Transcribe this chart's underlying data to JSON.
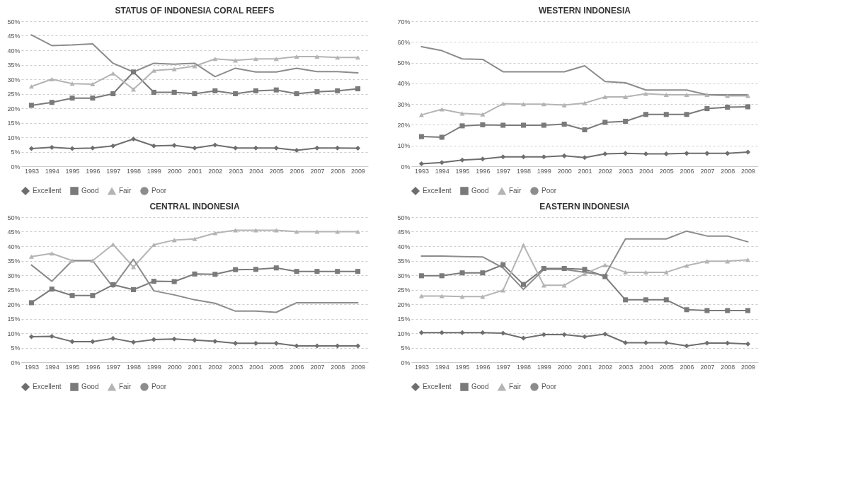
{
  "chart_data": [
    {
      "type": "line",
      "title": "STATUS OF INDONESIA CORAL REEFS",
      "categories": [
        "1993",
        "1994",
        "1995",
        "1996",
        "1997",
        "1998",
        "1999",
        "2000",
        "2001",
        "2002",
        "2003",
        "2004",
        "2005",
        "2006",
        "2007",
        "2008",
        "2009"
      ],
      "ylim": [
        0,
        50
      ],
      "yticks": [
        {
          "value": 0,
          "label": "0%"
        },
        {
          "value": 5,
          "label": "5%"
        },
        {
          "value": 10,
          "label": "10%"
        },
        {
          "value": 15,
          "label": "15%"
        },
        {
          "value": 20,
          "label": "20%"
        },
        {
          "value": 25,
          "label": "25%"
        },
        {
          "value": 30,
          "label": "30%"
        },
        {
          "value": 35,
          "label": "35%"
        },
        {
          "value": 40,
          "label": "40%"
        },
        {
          "value": 45,
          "label": "45%"
        },
        {
          "value": 50,
          "label": "50%"
        }
      ],
      "grid": "y",
      "legend": "bottom",
      "series": [
        {
          "name": "Excellent",
          "color": "#6e6e6e",
          "marker": "diamond",
          "values": [
            6.1,
            6.5,
            6.1,
            6.3,
            7,
            9.4,
            7,
            7.2,
            6.3,
            7.3,
            6.3,
            6.3,
            6.3,
            5.5,
            6.3,
            6.3,
            6.2
          ]
        },
        {
          "name": "Good",
          "color": "#7a7a7a",
          "marker": "square",
          "values": [
            21,
            22,
            23.5,
            23.5,
            25,
            32.5,
            25.5,
            25.5,
            25,
            26,
            25,
            26,
            26.3,
            25,
            25.7,
            26,
            26.7
          ]
        },
        {
          "name": "Fair",
          "color": "#b4b4b4",
          "marker": "triangle",
          "values": [
            27.5,
            30,
            28.5,
            28.3,
            32,
            26.5,
            33,
            33.5,
            34.5,
            37,
            36.5,
            37,
            37,
            37.8,
            37.8,
            37.5,
            37.5
          ]
        },
        {
          "name": "Poor",
          "color": "#8c8c8c",
          "marker": "none",
          "values": [
            45.3,
            41.6,
            41.8,
            42.2,
            35.5,
            32.5,
            35.5,
            35.2,
            35.5,
            30.9,
            33.8,
            32.5,
            32.5,
            33.8,
            32.6,
            32.6,
            32.2
          ]
        }
      ]
    },
    {
      "type": "line",
      "title": "WESTERN INDONESIA",
      "categories": [
        "1993",
        "1994",
        "1995",
        "1996",
        "1997",
        "1998",
        "1999",
        "2000",
        "2001",
        "2002",
        "2003",
        "2004",
        "2005",
        "2006",
        "2007",
        "2008",
        "2009"
      ],
      "ylim": [
        0,
        70
      ],
      "yticks": [
        {
          "value": 0,
          "label": "0%"
        },
        {
          "value": 10,
          "label": "10%"
        },
        {
          "value": 20,
          "label": "20%"
        },
        {
          "value": 30,
          "label": "30%"
        },
        {
          "value": 40,
          "label": "40%"
        },
        {
          "value": 50,
          "label": "50%"
        },
        {
          "value": 60,
          "label": "60%"
        },
        {
          "value": 70,
          "label": "70%"
        }
      ],
      "grid": "y",
      "legend": "bottom",
      "series": [
        {
          "name": "Excellent",
          "color": "#6e6e6e",
          "marker": "diamond",
          "values": [
            1.2,
            1.8,
            3,
            3.5,
            4.5,
            4.5,
            4.5,
            5,
            4.2,
            6,
            6.2,
            6,
            6,
            6.2,
            6.2,
            6.2,
            6.8
          ]
        },
        {
          "name": "Good",
          "color": "#7a7a7a",
          "marker": "square",
          "values": [
            14.3,
            14,
            19.5,
            20,
            19.8,
            19.8,
            19.8,
            20.3,
            17.6,
            21.2,
            21.7,
            25,
            25,
            25,
            27.8,
            28.5,
            28.7
          ]
        },
        {
          "name": "Fair",
          "color": "#b4b4b4",
          "marker": "triangle",
          "values": [
            24.8,
            27.5,
            25.5,
            25,
            30.2,
            30,
            30,
            29.5,
            30.5,
            33.5,
            33.5,
            35,
            34.5,
            34.5,
            34.5,
            34,
            34
          ]
        },
        {
          "name": "Poor",
          "color": "#8c8c8c",
          "marker": "none",
          "values": [
            57.7,
            55.8,
            51.8,
            51.6,
            45.6,
            45.6,
            45.6,
            45.6,
            48.5,
            40.9,
            40.3,
            36.8,
            36.8,
            36.8,
            34.5,
            34.5,
            34.5
          ]
        }
      ]
    },
    {
      "type": "line",
      "title": "CENTRAL INDONESIA",
      "categories": [
        "1993",
        "1994",
        "1995",
        "1996",
        "1997",
        "1998",
        "1999",
        "2000",
        "2001",
        "2002",
        "2003",
        "2004",
        "2005",
        "2006",
        "2007",
        "2008",
        "2009"
      ],
      "ylim": [
        0,
        50
      ],
      "yticks": [
        {
          "value": 0,
          "label": "0%"
        },
        {
          "value": 5,
          "label": "5%"
        },
        {
          "value": 10,
          "label": "10%"
        },
        {
          "value": 15,
          "label": "15%"
        },
        {
          "value": 20,
          "label": "20%"
        },
        {
          "value": 25,
          "label": "25%"
        },
        {
          "value": 30,
          "label": "30%"
        },
        {
          "value": 35,
          "label": "35%"
        },
        {
          "value": 40,
          "label": "40%"
        },
        {
          "value": 45,
          "label": "45%"
        },
        {
          "value": 50,
          "label": "50%"
        }
      ],
      "grid": "y",
      "legend": "bottom",
      "series": [
        {
          "name": "Excellent",
          "color": "#6e6e6e",
          "marker": "diamond",
          "values": [
            8.8,
            8.9,
            7.1,
            7.1,
            8.2,
            6.9,
            7.8,
            8,
            7.6,
            7.2,
            6.5,
            6.5,
            6.5,
            5.6,
            5.6,
            5.6,
            5.6
          ]
        },
        {
          "name": "Good",
          "color": "#7a7a7a",
          "marker": "square",
          "values": [
            20.5,
            25.2,
            23,
            23,
            26.7,
            25,
            27.9,
            27.8,
            30.4,
            30.3,
            31.9,
            32,
            32.5,
            31.3,
            31.3,
            31.3,
            31.3
          ]
        },
        {
          "name": "Fair",
          "color": "#b4b4b4",
          "marker": "triangle",
          "values": [
            36.4,
            37.5,
            35,
            35,
            40.6,
            32.8,
            40.5,
            42.1,
            42.5,
            44.5,
            45.5,
            45.5,
            45.5,
            45,
            45,
            45,
            45
          ]
        },
        {
          "name": "Poor",
          "color": "#8c8c8c",
          "marker": "none",
          "values": [
            33.5,
            27.9,
            35,
            35,
            25.9,
            35.5,
            24.6,
            23.2,
            21.5,
            20.3,
            17.6,
            17.6,
            17.2,
            20.5,
            20.5,
            20.5,
            20.5
          ]
        }
      ]
    },
    {
      "type": "line",
      "title": "EASTERN INDONESIA",
      "categories": [
        "1993",
        "1994",
        "1995",
        "1996",
        "1997",
        "1998",
        "1999",
        "2000",
        "2001",
        "2002",
        "2003",
        "2004",
        "2005",
        "2006",
        "2007",
        "2008",
        "2009"
      ],
      "ylim": [
        0,
        50
      ],
      "yticks": [
        {
          "value": 0,
          "label": "0%"
        },
        {
          "value": 5,
          "label": "5%"
        },
        {
          "value": 10,
          "label": "10%"
        },
        {
          "value": 15,
          "label": "15%"
        },
        {
          "value": 20,
          "label": "20%"
        },
        {
          "value": 25,
          "label": "25%"
        },
        {
          "value": 30,
          "label": "30%"
        },
        {
          "value": 35,
          "label": "35%"
        },
        {
          "value": 40,
          "label": "40%"
        },
        {
          "value": 45,
          "label": "45%"
        },
        {
          "value": 50,
          "label": "50%"
        }
      ],
      "grid": "y",
      "legend": "bottom",
      "series": [
        {
          "name": "Excellent",
          "color": "#6e6e6e",
          "marker": "diamond",
          "values": [
            10.2,
            10.2,
            10.2,
            10.2,
            10,
            8.3,
            9.5,
            9.5,
            8.8,
            9.7,
            6.7,
            6.7,
            6.7,
            5.6,
            6.6,
            6.6,
            6.3
          ]
        },
        {
          "name": "Good",
          "color": "#7a7a7a",
          "marker": "square",
          "values": [
            29.8,
            29.8,
            30.8,
            30.8,
            33.6,
            26.8,
            32.3,
            32.3,
            32,
            29.5,
            21.5,
            21.5,
            21.5,
            18.1,
            17.8,
            17.8,
            17.8
          ]
        },
        {
          "name": "Fair",
          "color": "#b4b4b4",
          "marker": "triangle",
          "values": [
            22.8,
            22.8,
            22.6,
            22.6,
            24.8,
            40.4,
            26.5,
            26.5,
            30.5,
            33.5,
            31,
            31,
            31,
            33.3,
            34.8,
            34.8,
            35.3
          ]
        },
        {
          "name": "Poor",
          "color": "#8c8c8c",
          "marker": "none",
          "values": [
            36.6,
            36.6,
            36.4,
            36.3,
            32.5,
            25.1,
            32,
            32,
            31,
            30,
            42.5,
            42.5,
            42.5,
            45.2,
            43.5,
            43.5,
            41.5
          ]
        }
      ]
    }
  ]
}
